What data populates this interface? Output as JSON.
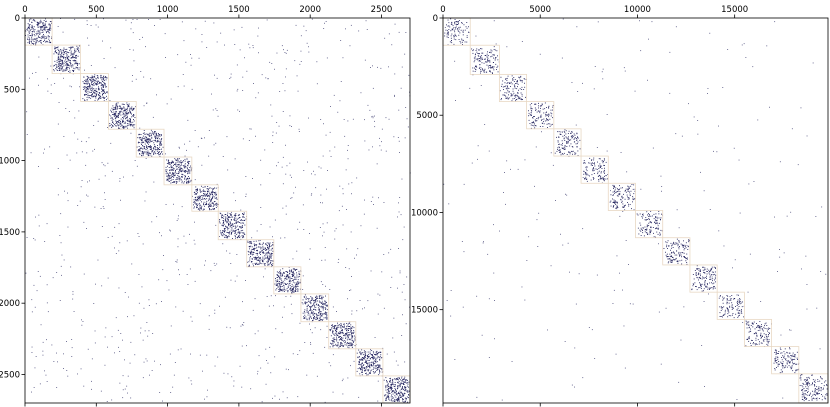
{
  "chart_data": [
    {
      "type": "heatmap",
      "title": "",
      "xlabel": "",
      "ylabel": "",
      "xlim": [
        0,
        2700
      ],
      "ylim": [
        2700,
        0
      ],
      "xticks": [
        "0",
        "500",
        "1000",
        "1500",
        "2000",
        "2500"
      ],
      "yticks": [
        "0",
        "500",
        "1000",
        "1500",
        "2000",
        "2500"
      ],
      "grid": false,
      "blocks": [
        {
          "start": 0,
          "end": 190,
          "density": 0.55
        },
        {
          "start": 190,
          "end": 390,
          "density": 0.6
        },
        {
          "start": 390,
          "end": 585,
          "density": 0.62
        },
        {
          "start": 585,
          "end": 780,
          "density": 0.6
        },
        {
          "start": 780,
          "end": 975,
          "density": 0.58
        },
        {
          "start": 975,
          "end": 1170,
          "density": 0.6
        },
        {
          "start": 1170,
          "end": 1355,
          "density": 0.58
        },
        {
          "start": 1355,
          "end": 1555,
          "density": 0.55
        },
        {
          "start": 1555,
          "end": 1745,
          "density": 0.6
        },
        {
          "start": 1745,
          "end": 1935,
          "density": 0.6
        },
        {
          "start": 1935,
          "end": 2130,
          "density": 0.55
        },
        {
          "start": 2130,
          "end": 2320,
          "density": 0.62
        },
        {
          "start": 2320,
          "end": 2510,
          "density": 0.62
        },
        {
          "start": 2510,
          "end": 2700,
          "density": 0.65
        }
      ],
      "colors": {
        "marker": "#1e1e5a",
        "block_outline": "#e8d8c4"
      }
    },
    {
      "type": "heatmap",
      "title": "",
      "xlabel": "",
      "ylabel": "",
      "xlim": [
        0,
        19800
      ],
      "ylim": [
        19800,
        0
      ],
      "xticks": [
        "0",
        "5000",
        "10000",
        "15000"
      ],
      "yticks": [
        "0",
        "5000",
        "10000",
        "15000"
      ],
      "grid": false,
      "blocks": [
        {
          "start": 0,
          "end": 1400,
          "density": 0.25
        },
        {
          "start": 1400,
          "end": 2900,
          "density": 0.3
        },
        {
          "start": 2900,
          "end": 4300,
          "density": 0.3
        },
        {
          "start": 4300,
          "end": 5700,
          "density": 0.28
        },
        {
          "start": 5700,
          "end": 7100,
          "density": 0.3
        },
        {
          "start": 7100,
          "end": 8500,
          "density": 0.28
        },
        {
          "start": 8500,
          "end": 9900,
          "density": 0.3
        },
        {
          "start": 9900,
          "end": 11300,
          "density": 0.28
        },
        {
          "start": 11300,
          "end": 12700,
          "density": 0.32
        },
        {
          "start": 12700,
          "end": 14100,
          "density": 0.32
        },
        {
          "start": 14100,
          "end": 15500,
          "density": 0.26
        },
        {
          "start": 15500,
          "end": 16900,
          "density": 0.3
        },
        {
          "start": 16900,
          "end": 18300,
          "density": 0.3
        },
        {
          "start": 18300,
          "end": 19800,
          "density": 0.32
        }
      ],
      "colors": {
        "marker": "#1e1e5a",
        "block_outline": "#e8d8c4"
      }
    }
  ]
}
